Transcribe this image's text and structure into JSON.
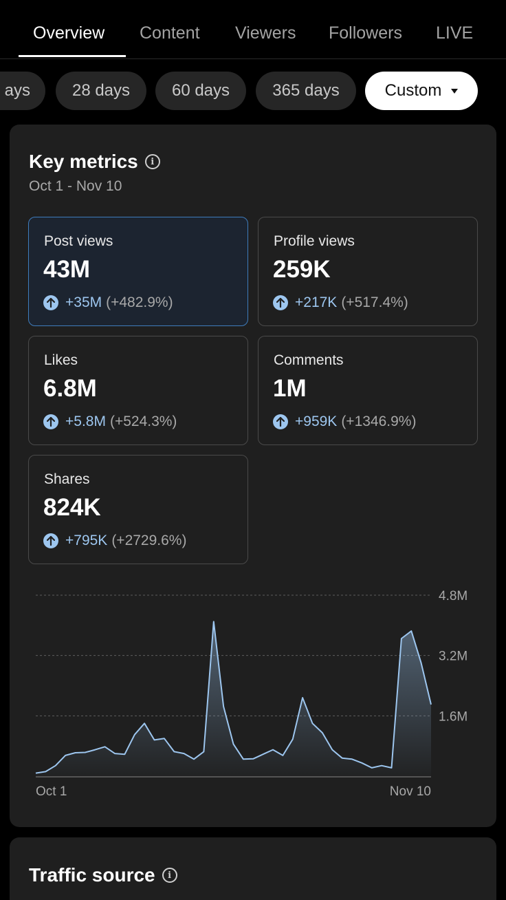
{
  "tabs": [
    {
      "label": "Overview",
      "active": true
    },
    {
      "label": "Content",
      "active": false
    },
    {
      "label": "Viewers",
      "active": false
    },
    {
      "label": "Followers",
      "active": false
    },
    {
      "label": "LIVE",
      "active": false
    }
  ],
  "date_chips": [
    "ays",
    "28 days",
    "60 days",
    "365 days"
  ],
  "custom_chip": {
    "label": "Custom",
    "icon": "caret-down-icon"
  },
  "key_metrics": {
    "title": "Key metrics",
    "date_range": "Oct 1 - Nov 10",
    "metrics": [
      {
        "label": "Post views",
        "value": "43M",
        "change": "+35M",
        "pct": "(+482.9%)",
        "selected": true
      },
      {
        "label": "Profile views",
        "value": "259K",
        "change": "+217K",
        "pct": "(+517.4%)",
        "selected": false
      },
      {
        "label": "Likes",
        "value": "6.8M",
        "change": "+5.8M",
        "pct": "(+524.3%)",
        "selected": false
      },
      {
        "label": "Comments",
        "value": "1M",
        "change": "+959K",
        "pct": "(+1346.9%)",
        "selected": false
      },
      {
        "label": "Shares",
        "value": "824K",
        "change": "+795K",
        "pct": "(+2729.6%)",
        "selected": false
      }
    ]
  },
  "chart_data": {
    "type": "area",
    "title": "Post views",
    "x_start_label": "Oct 1",
    "x_end_label": "Nov 10",
    "y_ticks": [
      {
        "value": 1.6,
        "label": "1.6M"
      },
      {
        "value": 3.2,
        "label": "3.2M"
      },
      {
        "value": 4.8,
        "label": "4.8M"
      }
    ],
    "ylim": [
      0,
      4.8
    ],
    "grid": true,
    "x": [
      1,
      2,
      3,
      4,
      5,
      6,
      7,
      8,
      9,
      10,
      11,
      12,
      13,
      14,
      15,
      16,
      17,
      18,
      19,
      20,
      21,
      22,
      23,
      24,
      25,
      26,
      27,
      28,
      29,
      30,
      31,
      32,
      33,
      34,
      35,
      36,
      37,
      38,
      39,
      40,
      41
    ],
    "values": [
      0.08,
      0.12,
      0.28,
      0.55,
      0.62,
      0.63,
      0.7,
      0.78,
      0.6,
      0.58,
      1.1,
      1.4,
      0.96,
      1.0,
      0.65,
      0.6,
      0.45,
      0.65,
      4.1,
      1.85,
      0.85,
      0.45,
      0.46,
      0.58,
      0.7,
      0.55,
      0.98,
      2.08,
      1.4,
      1.15,
      0.7,
      0.48,
      0.45,
      0.35,
      0.22,
      0.28,
      0.22,
      3.65,
      3.85,
      3.0,
      1.9
    ],
    "colors": {
      "line": "#9dc6ef",
      "grid": "#5e5e5e",
      "axis": "#666666",
      "label": "#a8a8a8"
    }
  },
  "traffic_source": {
    "title": "Traffic source"
  },
  "colors": {
    "accent": "#9dc6ef",
    "selected_border": "#3f7dbd",
    "card_bg": "#1f1f1f",
    "page_bg": "#000000"
  }
}
